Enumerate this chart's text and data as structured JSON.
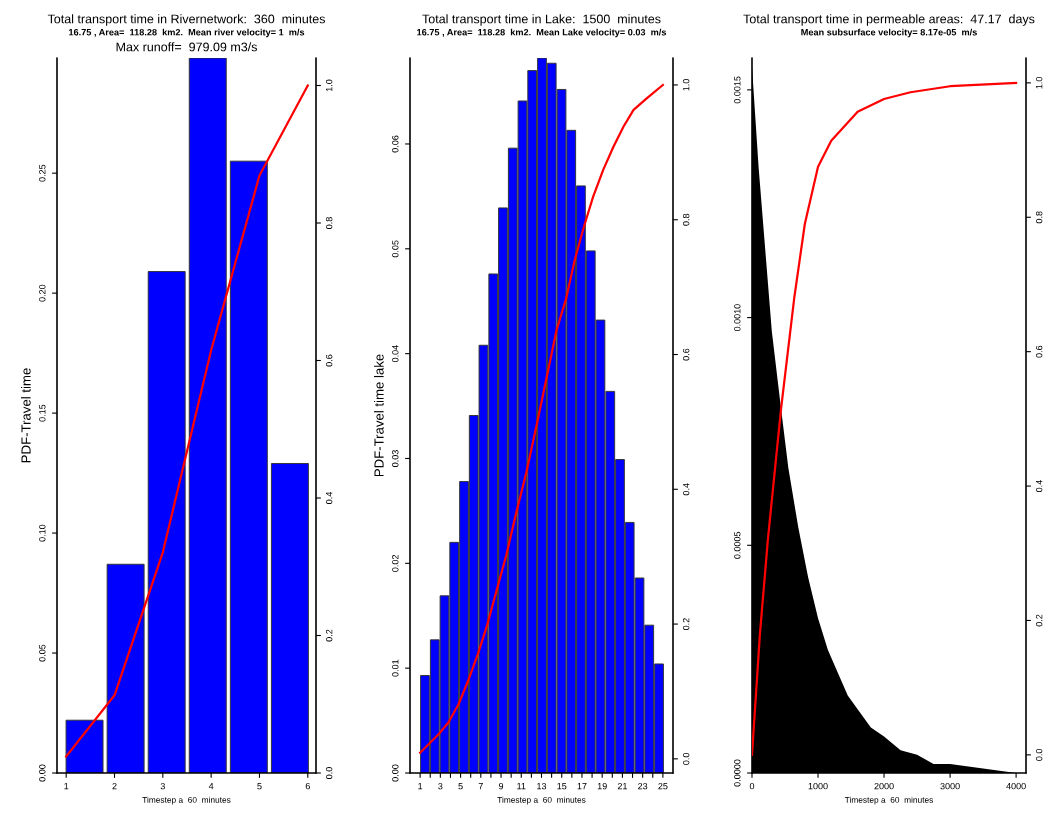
{
  "chart_data": [
    {
      "type": "bar",
      "title": "Total transport time in Rivernetwork:  360  minutes",
      "subtitle": "16.75 , Area=  118.28  km2.  Mean river velocity= 1  m/s",
      "annotations": [
        "Max runoff=  979.09 m3/s"
      ],
      "xlabel": "Timestep a  60  minutes",
      "ylabel": "PDF-Travel time",
      "xlim": [
        0.81,
        6.17
      ],
      "xticks": [
        1,
        2,
        3,
        4,
        5,
        6
      ],
      "ylim": [
        0,
        0.298
      ],
      "yticks": [
        {
          "value": 0,
          "label": "0.00"
        },
        {
          "value": 0.05,
          "label": "0.05"
        },
        {
          "value": 0.1,
          "label": "0.10"
        },
        {
          "value": 0.15,
          "label": "0.15"
        },
        {
          "value": 0.2,
          "label": "0.20"
        },
        {
          "value": 0.25,
          "label": "0.25"
        }
      ],
      "y2lim": [
        0,
        1.04
      ],
      "y2ticks": [
        {
          "value": 0,
          "label": "0.0"
        },
        {
          "value": 0.2,
          "label": "0.2"
        },
        {
          "value": 0.4,
          "label": "0.4"
        },
        {
          "value": 0.6,
          "label": "0.6"
        },
        {
          "value": 0.8,
          "label": "0.8"
        },
        {
          "value": 1,
          "label": "1.0"
        }
      ],
      "grid": false,
      "legend": false,
      "series": [
        {
          "color": "#0000ff",
          "x": [
            1.38,
            2.23,
            3.08,
            3.93,
            4.78,
            5.63
          ],
          "values": [
            0.022,
            0.087,
            0.209,
            0.298,
            0.255,
            0.129
          ]
        },
        {
          "type": "line",
          "color": "#ff0000",
          "axis": "y2",
          "x": [
            1,
            2,
            3,
            4,
            5,
            6
          ],
          "values": [
            0.024,
            0.113,
            0.321,
            0.615,
            0.869,
            1.0
          ]
        }
      ]
    },
    {
      "type": "bar",
      "title": "Total transport time in Lake:  1500  minutes",
      "subtitle": "16.75 , Area=  118.28  km2.  Mean Lake velocity= 0.03  m/s",
      "xlabel": "Timestep a  60  minutes",
      "ylabel": "PDF-Travel time lake",
      "xlim": [
        0,
        26
      ],
      "xticks": [
        1,
        {
          "value": 2,
          "label": null
        },
        3,
        {
          "value": 4,
          "label": null
        },
        5,
        {
          "value": 6,
          "label": null
        },
        7,
        {
          "value": 8,
          "label": null
        },
        9,
        {
          "value": 10,
          "label": null
        },
        11,
        {
          "value": 12,
          "label": null
        },
        13,
        {
          "value": 14,
          "label": null
        },
        15,
        {
          "value": 16,
          "label": null
        },
        17,
        {
          "value": 18,
          "label": null
        },
        19,
        {
          "value": 20,
          "label": null
        },
        21,
        {
          "value": 22,
          "label": null
        },
        23,
        {
          "value": 24,
          "label": null
        },
        25
      ],
      "ylim": [
        0,
        0.0682
      ],
      "yticks": [
        {
          "value": 0,
          "label": "0.00"
        },
        {
          "value": 0.01,
          "label": "0.01"
        },
        {
          "value": 0.02,
          "label": "0.02"
        },
        {
          "value": 0.03,
          "label": "0.03"
        },
        {
          "value": 0.04,
          "label": "0.04"
        },
        {
          "value": 0.05,
          "label": "0.05"
        },
        {
          "value": 0.06,
          "label": "0.06"
        }
      ],
      "y2lim": [
        -0.021,
        1.04
      ],
      "y2ticks": [
        {
          "value": 0,
          "label": "0.0"
        },
        {
          "value": 0.2,
          "label": "0.2"
        },
        {
          "value": 0.4,
          "label": "0.4"
        },
        {
          "value": 0.6,
          "label": "0.6"
        },
        {
          "value": 0.8,
          "label": "0.8"
        },
        {
          "value": 1,
          "label": "1.0"
        }
      ],
      "grid": false,
      "legend": false,
      "series": [
        {
          "color": "#0000ff",
          "x": [
            1.48,
            2.45,
            3.41,
            4.37,
            5.34,
            6.3,
            7.26,
            8.23,
            9.19,
            10.16,
            11.12,
            12.08,
            13.05,
            14.01,
            14.98,
            15.94,
            16.9,
            17.87,
            18.83,
            19.8,
            20.76,
            21.72,
            22.69,
            23.65,
            24.62
          ],
          "values": [
            0.0093,
            0.0127,
            0.0169,
            0.022,
            0.0278,
            0.0341,
            0.0408,
            0.0476,
            0.0539,
            0.0596,
            0.0641,
            0.067,
            0.0682,
            0.0677,
            0.0652,
            0.0613,
            0.056,
            0.0498,
            0.0432,
            0.0364,
            0.0299,
            0.0239,
            0.0186,
            0.0141,
            0.0104
          ]
        },
        {
          "type": "line",
          "color": "#ff0000",
          "axis": "y2",
          "x": [
            1.0,
            2.85,
            3.8,
            4.8,
            5.7,
            6.7,
            7.6,
            8.6,
            9.5,
            10.5,
            11.5,
            12.5,
            13.4,
            14.5,
            15.4,
            16.3,
            17.2,
            18.1,
            19.1,
            20.1,
            21.1,
            22.1,
            23.4,
            25.0
          ],
          "values": [
            0.009,
            0.037,
            0.054,
            0.081,
            0.114,
            0.155,
            0.197,
            0.252,
            0.301,
            0.365,
            0.425,
            0.494,
            0.558,
            0.637,
            0.681,
            0.741,
            0.79,
            0.834,
            0.874,
            0.908,
            0.938,
            0.963,
            0.98,
            1.0
          ]
        }
      ]
    },
    {
      "type": "area",
      "title": "Total transport time in permeable areas:  47.17  days",
      "subtitle": "Mean subsurface velocity= 8.17e-05  m/s",
      "xlabel": "Timestep a  60  minutes",
      "xlim": [
        0,
        4150
      ],
      "xticks": [
        0,
        1000,
        2000,
        3000,
        4000
      ],
      "ylim": [
        0,
        0.00157
      ],
      "yticks": [
        {
          "value": 0,
          "label": "0.0000"
        },
        {
          "value": 0.0005,
          "label": "0.0005"
        },
        {
          "value": 0.001,
          "label": "0.0010"
        },
        {
          "value": 0.0015,
          "label": "0.0015"
        }
      ],
      "y2lim": [
        -0.027,
        1.037
      ],
      "y2ticks": [
        {
          "value": 0,
          "label": "0.0"
        },
        {
          "value": 0.2,
          "label": "0.2"
        },
        {
          "value": 0.4,
          "label": "0.4"
        },
        {
          "value": 0.6,
          "label": "0.6"
        },
        {
          "value": 0.8,
          "label": "0.8"
        },
        {
          "value": 1,
          "label": "1.0"
        }
      ],
      "grid": false,
      "legend": false,
      "series": [
        {
          "color": "#000000",
          "x": [
            0,
            100,
            200,
            300,
            440,
            550,
            700,
            850,
            1000,
            1150,
            1300,
            1450,
            1600,
            1800,
            2000,
            2250,
            2500,
            2750,
            3000,
            3500,
            4000
          ],
          "values": [
            0.00155,
            0.00133,
            0.00115,
            0.00097,
            0.0008,
            0.00067,
            0.00054,
            0.00043,
            0.00034,
            0.00027,
            0.00022,
            0.00017,
            0.00014,
            0.0001,
            8e-05,
            5e-05,
            4e-05,
            2e-05,
            2e-05,
            1e-05,
            0.0
          ]
        },
        {
          "type": "line",
          "color": "#ff0000",
          "axis": "y2",
          "x": [
            0,
            40,
            120,
            240,
            440,
            640,
            800,
            1000,
            1200,
            1600,
            2000,
            2400,
            3000,
            4000
          ],
          "values": [
            0.0,
            0.06,
            0.18,
            0.32,
            0.515,
            0.68,
            0.79,
            0.875,
            0.914,
            0.957,
            0.976,
            0.986,
            0.995,
            1.0
          ]
        }
      ]
    }
  ]
}
